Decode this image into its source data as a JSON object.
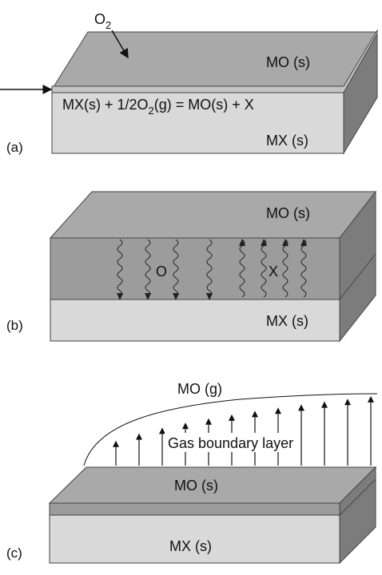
{
  "panel_a": {
    "label": "(a)",
    "gas": [
      "O",
      "2"
    ],
    "top_layer": "MO (s)",
    "equation": [
      "MX(s) + 1/2O",
      "2",
      "(g) = MO(s) + X"
    ],
    "bottom_layer": "MX (s)"
  },
  "panel_b": {
    "label": "(b)",
    "top_layer": "MO (s)",
    "inward": "O",
    "outward": "X",
    "bottom_layer": "MX (s)"
  },
  "panel_c": {
    "label": "(c)",
    "gas": "MO (g)",
    "boundary": "Gas boundary layer",
    "top_layer": "MO (s)",
    "bottom_layer": "MX (s)"
  }
}
